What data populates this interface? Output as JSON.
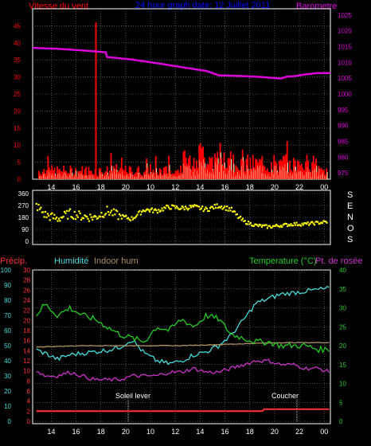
{
  "colors": {
    "background": "#000000",
    "frame": "#ffffff",
    "grid": "#7f7f7f",
    "wind": "#ff0000",
    "wind_avg": "#ffffcc",
    "barometer": "#dd00dd",
    "direction": "#ffff00",
    "precip": "#ff3333",
    "humidity": "#44dddd",
    "indoor_hum": "#b09060",
    "temperature": "#22cc22",
    "dewpoint": "#cc33cc",
    "title": "#0000ff",
    "sun": "#ffffff"
  },
  "header": {
    "wind_label": "Vitesse du vent",
    "title": "24 hour graph date: 12 Juillet 2011",
    "baro_label": "Barometre"
  },
  "direction_letters": [
    "S",
    "E",
    "N",
    "O",
    "S"
  ],
  "bottom_labels": {
    "precip": "Précip.",
    "humidity": "Humidité",
    "indoor": "Indoor hum",
    "temperature": "Temperature (°C)",
    "dewpoint": "Pt. de rosée",
    "sunrise": "Soleil lever",
    "sunset": "Coucher"
  },
  "chart_data": [
    {
      "type": "line",
      "title": "24 hour graph date: 12 Juillet 2011",
      "x_ticks": [
        "14",
        "16",
        "18",
        "20",
        "10",
        "12",
        "14",
        "16",
        "18",
        "20",
        "22",
        "00"
      ],
      "y_left": {
        "label": "Vitesse du vent",
        "ticks": [
          0,
          5,
          10,
          15,
          20,
          25,
          30,
          35,
          40,
          45
        ],
        "range": [
          0,
          50
        ]
      },
      "y_right": {
        "label": "Barometre",
        "ticks": [
          975,
          980,
          985,
          990,
          995,
          1000,
          1005,
          1010,
          1015,
          1020,
          1025
        ],
        "range": [
          973,
          1027
        ]
      },
      "series": [
        {
          "name": "Barometre",
          "axis": "right",
          "x": [
            0,
            2,
            4,
            5.9,
            6,
            8,
            10,
            12,
            14,
            15,
            16,
            18,
            20,
            20.5,
            21,
            22,
            23,
            24
          ],
          "values": [
            1014.6,
            1014.3,
            1013.8,
            1013.2,
            1011.7,
            1010.9,
            1009.8,
            1008.5,
            1007.3,
            1005.9,
            1005.8,
            1005.5,
            1004.9,
            1005.5,
            1005.6,
            1006.2,
            1006.6,
            1006.6
          ]
        },
        {
          "name": "Vitesse du vent",
          "axis": "left",
          "spike": {
            "x": 5.1,
            "value": 46
          }
        }
      ]
    },
    {
      "type": "scatter",
      "y_ticks": [
        0,
        90,
        180,
        270,
        360
      ],
      "y_range": [
        0,
        360
      ],
      "x_ticks": [
        "14",
        "16",
        "18",
        "20",
        "10",
        "12",
        "14",
        "16",
        "18",
        "20",
        "22",
        "00"
      ],
      "series": [
        {
          "name": "direction",
          "x": [
            0,
            1,
            2,
            3,
            4,
            5,
            6,
            7,
            8,
            9,
            10,
            11,
            12,
            13,
            14,
            15,
            16,
            16.5,
            17,
            18,
            19,
            20,
            21,
            22,
            23,
            24
          ],
          "values": [
            300,
            200,
            170,
            210,
            190,
            180,
            230,
            190,
            170,
            240,
            230,
            260,
            250,
            260,
            240,
            270,
            240,
            190,
            150,
            120,
            110,
            120,
            130,
            130,
            140,
            150
          ]
        }
      ]
    },
    {
      "type": "line",
      "x_ticks": [
        "14",
        "16",
        "18",
        "20",
        "10",
        "12",
        "14",
        "16",
        "18",
        "20",
        "22",
        "00"
      ],
      "y_precip": {
        "ticks": [
          0,
          2,
          4,
          6,
          8,
          10,
          12,
          14,
          16,
          18,
          20,
          22,
          24,
          26,
          28,
          30
        ],
        "range": [
          0,
          30
        ]
      },
      "y_humidity": {
        "ticks": [
          0,
          10,
          20,
          30,
          40,
          50,
          60,
          70,
          80,
          90,
          100
        ],
        "range": [
          0,
          100
        ]
      },
      "y_temperature": {
        "ticks": [
          0,
          5,
          10,
          15,
          20,
          25,
          30,
          35,
          40
        ],
        "range": [
          0,
          40
        ]
      },
      "series": [
        {
          "name": "Humidité",
          "x": [
            0,
            1,
            2,
            3,
            4,
            5,
            6,
            7,
            8,
            9,
            10,
            11,
            12,
            13,
            14,
            15,
            16,
            17,
            18,
            19,
            20,
            21,
            22,
            23,
            24
          ],
          "values": [
            48,
            45,
            41,
            44,
            45,
            46,
            47,
            49,
            54,
            45,
            40,
            38,
            40,
            44,
            46,
            50,
            57,
            67,
            78,
            81,
            84,
            85,
            86,
            87,
            88
          ]
        },
        {
          "name": "Indoor hum",
          "x": [
            0,
            4,
            8,
            12,
            16,
            20,
            24
          ],
          "values": [
            49,
            50,
            50,
            50,
            51,
            52,
            52
          ]
        },
        {
          "name": "Temperature (°C)",
          "x": [
            0,
            1,
            2,
            3,
            4,
            5,
            6,
            7,
            8,
            9,
            10,
            11,
            12,
            13,
            14,
            15,
            16,
            17,
            18,
            19,
            20,
            21,
            22,
            23,
            24
          ],
          "values": [
            27,
            31,
            28,
            30,
            28,
            27,
            25,
            23,
            22,
            21,
            25,
            24,
            27,
            25,
            28,
            27,
            23,
            22,
            21,
            21,
            20,
            20,
            20,
            19,
            19
          ]
        },
        {
          "name": "Pt. de rosée",
          "x": [
            0,
            1,
            2,
            3,
            4,
            5,
            6,
            7,
            8,
            9,
            10,
            11,
            12,
            13,
            14,
            15,
            16,
            17,
            18,
            19,
            20,
            21,
            22,
            23,
            24
          ],
          "values": [
            14,
            12,
            12,
            13,
            12,
            11,
            11,
            11,
            12,
            12,
            12,
            13,
            13,
            14,
            13,
            13,
            14,
            15,
            16,
            16,
            15,
            15,
            14,
            14,
            13
          ]
        },
        {
          "name": "Précip.",
          "x": [
            0,
            18.5,
            18.6,
            24
          ],
          "values": [
            2,
            2,
            2.4,
            2.4
          ]
        }
      ],
      "annotations": [
        {
          "label": "Soleil lever",
          "x": 7.7
        },
        {
          "label": "Coucher",
          "x": 21.3
        }
      ]
    }
  ]
}
